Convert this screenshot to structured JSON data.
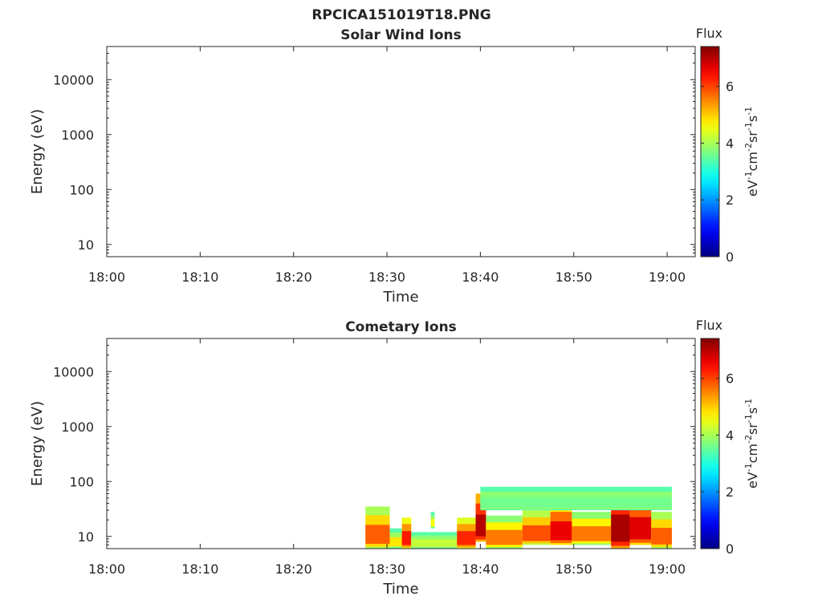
{
  "figure_title": "RPCICA151019T18.PNG",
  "chart_data": [
    {
      "type": "heatmap",
      "title": "Solar Wind Ions",
      "xlabel": "Time",
      "ylabel": "Energy (eV)",
      "x_ticks": [
        "18:00",
        "18:10",
        "18:20",
        "18:30",
        "18:40",
        "18:50",
        "19:00"
      ],
      "xlim": [
        "18:00",
        "19:03"
      ],
      "y_scale": "log",
      "y_ticks": [
        10,
        100,
        1000,
        10000
      ],
      "y_tick_labels": [
        "10",
        "100",
        "1000",
        "10000"
      ],
      "ylim": [
        6,
        40000
      ],
      "grid": false,
      "colorbar": {
        "label": "Flux",
        "units": "eV-1cm-2sr-1s-1",
        "colormap": "jet",
        "ticks": [
          0,
          2,
          4,
          6
        ],
        "range": [
          0,
          7.4
        ]
      },
      "regions": []
    },
    {
      "type": "heatmap",
      "title": "Cometary Ions",
      "xlabel": "Time",
      "ylabel": "Energy (eV)",
      "x_ticks": [
        "18:00",
        "18:10",
        "18:20",
        "18:30",
        "18:40",
        "18:50",
        "19:00"
      ],
      "xlim": [
        "18:00",
        "19:03"
      ],
      "y_scale": "log",
      "y_ticks": [
        10,
        100,
        1000,
        10000
      ],
      "y_tick_labels": [
        "10",
        "100",
        "1000",
        "10000"
      ],
      "ylim": [
        6,
        40000
      ],
      "grid": false,
      "colorbar": {
        "label": "Flux",
        "units": "eV-1cm-2sr-1s-1",
        "colormap": "jet",
        "ticks": [
          0,
          2,
          4,
          6
        ],
        "range": [
          0,
          7.4
        ]
      },
      "regions": [
        {
          "t_start": "18:27.7",
          "t_end": "18:30.3",
          "e_low": 6,
          "e_high": 35,
          "flux": 5.8
        },
        {
          "t_start": "18:30.3",
          "t_end": "18:31.6",
          "e_low": 6,
          "e_high": 14,
          "flux": 4.8
        },
        {
          "t_start": "18:31.6",
          "t_end": "18:32.6",
          "e_low": 6,
          "e_high": 22,
          "flux": 6.3
        },
        {
          "t_start": "18:32.6",
          "t_end": "18:37.5",
          "e_low": 6,
          "e_high": 12,
          "flux": 4.2
        },
        {
          "t_start": "18:34.7",
          "t_end": "18:35.1",
          "e_low": 14,
          "e_high": 28,
          "flux": 4.6
        },
        {
          "t_start": "18:37.5",
          "t_end": "18:39.5",
          "e_low": 6,
          "e_high": 22,
          "flux": 6.2
        },
        {
          "t_start": "18:39.5",
          "t_end": "18:40.6",
          "e_low": 8,
          "e_high": 60,
          "flux": 7.0
        },
        {
          "t_start": "18:40.6",
          "t_end": "18:44.5",
          "e_low": 6,
          "e_high": 24,
          "flux": 5.6
        },
        {
          "t_start": "18:44.5",
          "t_end": "18:47.5",
          "e_low": 7,
          "e_high": 30,
          "flux": 5.9
        },
        {
          "t_start": "18:47.5",
          "t_end": "18:49.8",
          "e_low": 7,
          "e_high": 40,
          "flux": 6.6
        },
        {
          "t_start": "18:49.8",
          "t_end": "18:54.0",
          "e_low": 7,
          "e_high": 28,
          "flux": 5.6
        },
        {
          "t_start": "18:54.0",
          "t_end": "18:56.0",
          "e_low": 6,
          "e_high": 75,
          "flux": 7.1
        },
        {
          "t_start": "18:56.0",
          "t_end": "18:58.3",
          "e_low": 7,
          "e_high": 55,
          "flux": 6.7
        },
        {
          "t_start": "18:58.3",
          "t_end": "19:00.5",
          "e_low": 6,
          "e_high": 28,
          "flux": 5.8
        },
        {
          "t_start": "18:40.0",
          "t_end": "19:00.5",
          "e_low": 30,
          "e_high": 80,
          "flux": 3.6
        }
      ]
    }
  ]
}
